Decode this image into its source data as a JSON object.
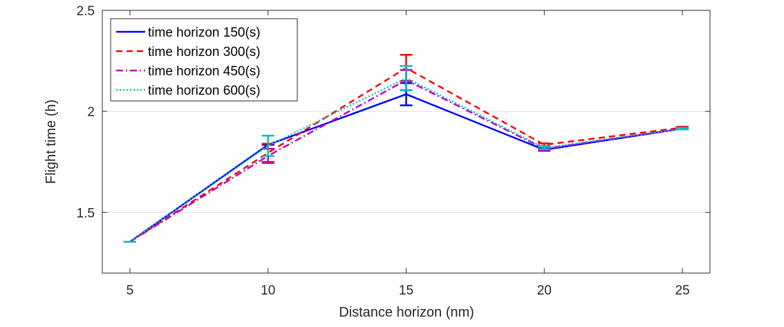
{
  "chart_data": {
    "type": "line",
    "title": "",
    "xlabel": "Distance horizon (nm)",
    "ylabel": "Flight time (h)",
    "xlim": [
      4,
      26
    ],
    "ylim": [
      1.2,
      2.5
    ],
    "xticks": [
      5,
      10,
      15,
      20,
      25
    ],
    "yticks": [
      1.5,
      2,
      2.5
    ],
    "xtick_labels": [
      "5",
      "10",
      "15",
      "20",
      "25"
    ],
    "ytick_labels": [
      "1.5",
      "2",
      "2.5"
    ],
    "grid": "horizontal",
    "legend": "top-left",
    "x": [
      5,
      10,
      15,
      20,
      25
    ],
    "series": [
      {
        "name": "time horizon 150(s)",
        "color": "#0000ff",
        "linestyle": "solid",
        "values": [
          1.355,
          1.835,
          2.085,
          1.81,
          1.915
        ],
        "error": [
          0.0,
          0.0,
          0.055,
          0.005,
          0.003
        ]
      },
      {
        "name": "time horizon 300(s)",
        "color": "#ff0000",
        "linestyle": "dashed",
        "values": [
          1.355,
          1.795,
          2.215,
          1.835,
          1.92
        ],
        "error": [
          0.0,
          0.045,
          0.065,
          0.007,
          0.004
        ]
      },
      {
        "name": "time horizon 450(s)",
        "color": "#bf00bf",
        "linestyle": "dashdot",
        "values": [
          1.355,
          1.78,
          2.155,
          1.815,
          1.915
        ],
        "error": [
          0.0,
          0.035,
          0.05,
          0.007,
          0.004
        ]
      },
      {
        "name": "time horizon 600(s)",
        "color": "#00bfbf",
        "linestyle": "dotted",
        "values": [
          1.355,
          1.83,
          2.165,
          1.82,
          1.915
        ],
        "error": [
          0.0,
          0.05,
          0.06,
          0.007,
          0.004
        ]
      }
    ]
  }
}
